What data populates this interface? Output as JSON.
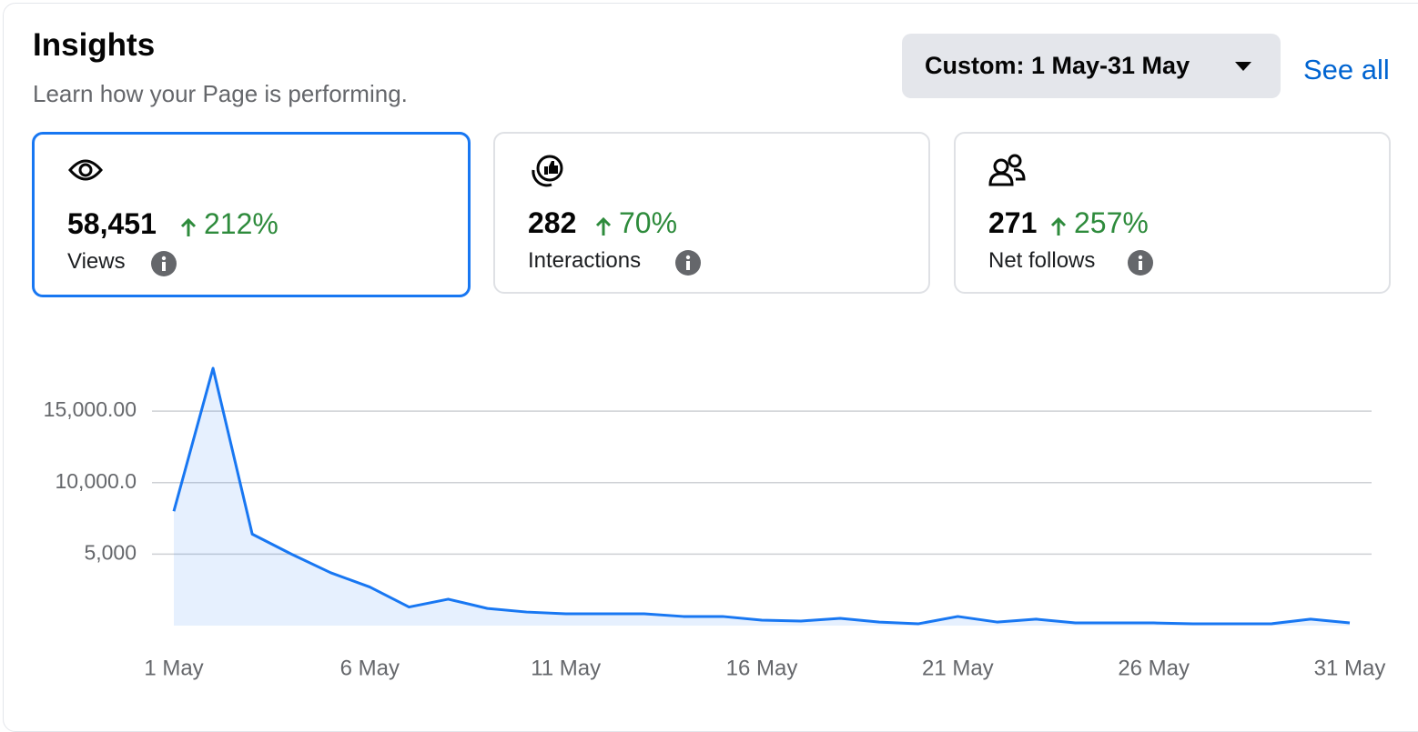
{
  "header": {
    "title": "Insights",
    "subtitle": "Learn how your Page is performing.",
    "date_range": "Custom: 1 May-31 May",
    "see_all": "See all"
  },
  "metrics": [
    {
      "value": "58,451",
      "change": "212%",
      "label": "Views"
    },
    {
      "value": "282",
      "change": "70%",
      "label": "Interactions"
    },
    {
      "value": "271",
      "change": "257%",
      "label": "Net follows"
    }
  ],
  "chart_data": {
    "type": "area",
    "color": "#1877f2",
    "grid": true,
    "categories": [
      "1 May",
      null,
      null,
      null,
      null,
      "6 May",
      null,
      null,
      null,
      null,
      "11 May",
      null,
      null,
      null,
      null,
      "16 May",
      null,
      null,
      null,
      null,
      "21 May",
      null,
      null,
      null,
      null,
      "26 May",
      null,
      null,
      null,
      null,
      "31 May"
    ],
    "values": [
      8000,
      18000,
      6400,
      5000,
      3700,
      2700,
      1300,
      1850,
      1200,
      950,
      830,
      830,
      830,
      640,
      640,
      380,
      320,
      510,
      250,
      130,
      640,
      250,
      450,
      190,
      190,
      190,
      130,
      130,
      130,
      450,
      190
    ],
    "ylim": [
      0,
      18000
    ],
    "yticks": [
      {
        "value": 5000,
        "label": "5,000"
      },
      {
        "value": 10000,
        "label": "10,000.0"
      },
      {
        "value": 15000,
        "label": "15,000.00"
      }
    ]
  }
}
